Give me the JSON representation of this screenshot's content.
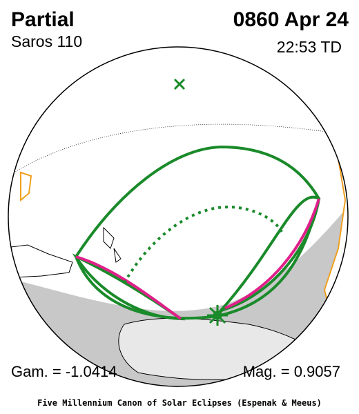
{
  "header": {
    "title": "Partial",
    "date": "0860 Apr 24",
    "saros": "Saros 110",
    "time": "22:53 TD"
  },
  "footer": {
    "gamma": "Gam. = -1.0414",
    "magnitude": "Mag. = 0.9057",
    "credit": "Five Millennium Canon of Solar Eclipses (Espenak & Meeus)"
  }
}
